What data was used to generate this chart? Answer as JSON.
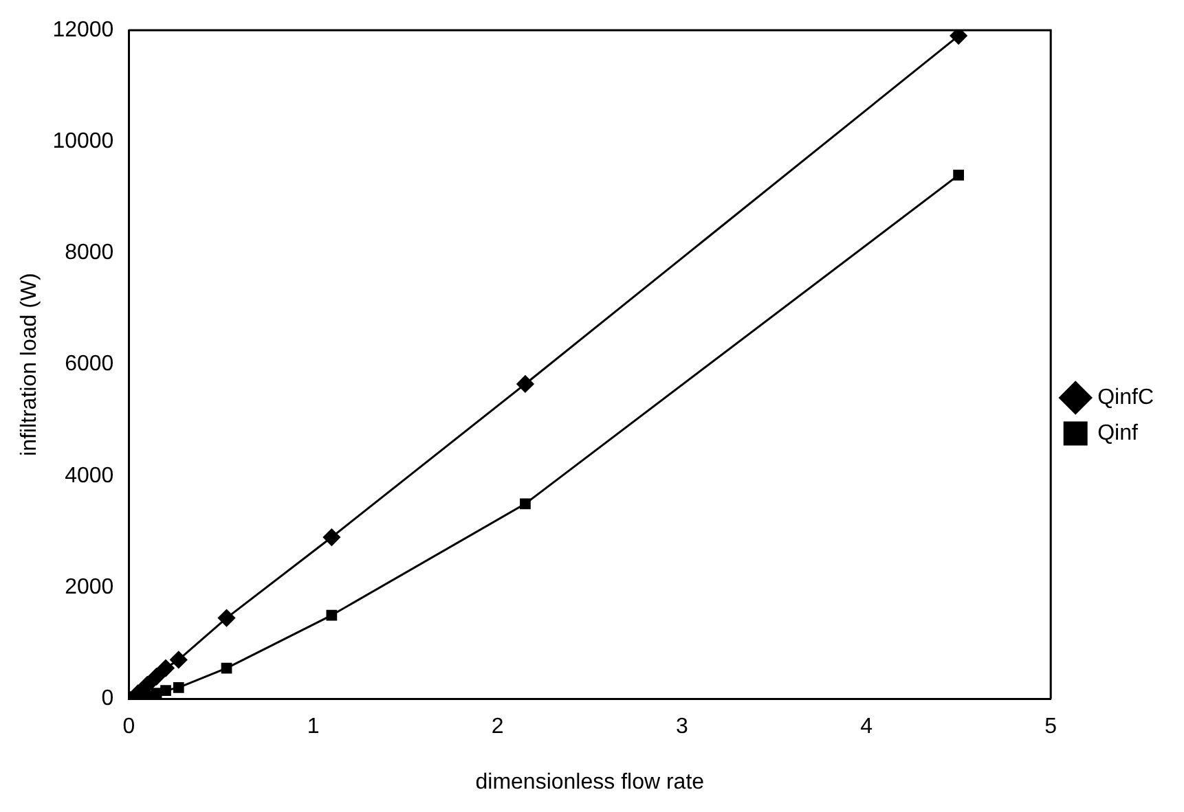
{
  "chart_data": {
    "type": "line",
    "xlabel": "dimensionless flow rate",
    "ylabel": "infiltration load (W)",
    "xlim": [
      0,
      5
    ],
    "xticks": [
      0,
      1,
      2,
      3,
      4,
      5
    ],
    "ylim": [
      0,
      12000
    ],
    "yticks": [
      0,
      2000,
      4000,
      6000,
      8000,
      10000,
      12000
    ],
    "grid": false,
    "legend": "right",
    "series": [
      {
        "name": "QinfC",
        "color": "#000000",
        "marker": "diamond",
        "x": [
          0,
          0.05,
          0.1,
          0.15,
          0.2,
          0.27,
          0.53,
          1.1,
          2.15,
          4.5
        ],
        "values": [
          0,
          100,
          250,
          400,
          550,
          700,
          1450,
          2900,
          5650,
          11900
        ]
      },
      {
        "name": "Qinf",
        "color": "#000000",
        "marker": "square",
        "x": [
          0,
          0.05,
          0.1,
          0.15,
          0.2,
          0.27,
          0.53,
          1.1,
          2.15,
          4.5
        ],
        "values": [
          0,
          20,
          50,
          100,
          150,
          200,
          550,
          1500,
          3500,
          9400
        ]
      }
    ]
  }
}
